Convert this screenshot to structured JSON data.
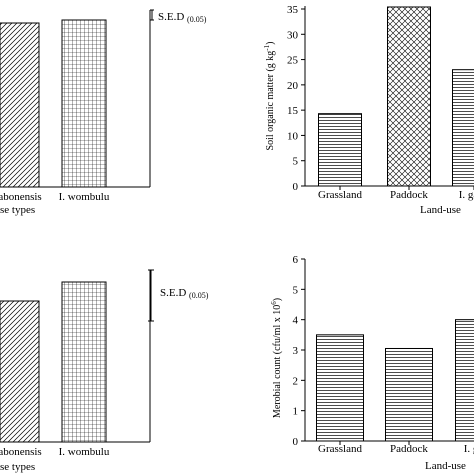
{
  "chart_data": [
    {
      "type": "bar",
      "categories": [
        "abonensis",
        "I. wombulu"
      ],
      "values": [
        null,
        null
      ],
      "xlabel": "se types",
      "sed_label": "S.E.D",
      "sed_sub": "(0.05)"
    },
    {
      "type": "bar",
      "categories": [
        "Grassland",
        "Paddock",
        "I. gabo"
      ],
      "values": [
        14.3,
        35.4,
        23.0
      ],
      "ylabel": "Soil organic matter (g kg",
      "ylabel_sup": "-1",
      "ylabel_end": ")",
      "xlabel": "Land-use",
      "ylim": [
        0,
        35
      ],
      "yticks": [
        0,
        5,
        10,
        15,
        20,
        25,
        30,
        35
      ]
    },
    {
      "type": "bar",
      "categories": [
        "abonensis",
        "I. wombulu"
      ],
      "values": [
        null,
        null
      ],
      "xlabel": "se types",
      "sed_label": "S.E.D",
      "sed_sub": "(0.05)"
    },
    {
      "type": "bar",
      "categories": [
        "Grassland",
        "Paddock",
        "I. gabo"
      ],
      "values": [
        3.5,
        3.05,
        4.0
      ],
      "ylabel": "Merobial count (cfu/ml x 10",
      "ylabel_sup": "6",
      "ylabel_end": ")",
      "xlabel": "Land-use",
      "ylim": [
        0,
        6
      ],
      "yticks": [
        0,
        1,
        2,
        3,
        4,
        5,
        6
      ]
    }
  ]
}
